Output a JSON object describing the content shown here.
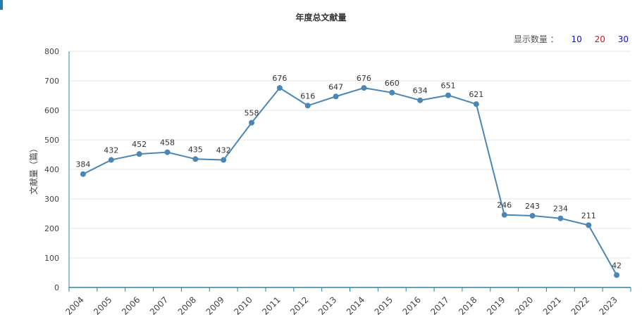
{
  "page": {
    "title": "年度总文献量",
    "display_count_label": "显示数量 ：",
    "display_options": [
      "10",
      "20",
      "30"
    ]
  },
  "colors": {
    "line": "#4a86b6",
    "axis": "#2f82a8",
    "grid": "#e6e6e6",
    "option_blue": "#1010cc",
    "option_red": "#dd1111"
  },
  "chart_data": {
    "type": "line",
    "title": "年度总文献量",
    "xlabel": "",
    "ylabel": "文献量（篇）",
    "ylim": [
      0,
      800
    ],
    "yticks": [
      0,
      100,
      200,
      300,
      400,
      500,
      600,
      700,
      800
    ],
    "grid": true,
    "categories": [
      "2004",
      "2005",
      "2006",
      "2007",
      "2008",
      "2009",
      "2010",
      "2011",
      "2012",
      "2013",
      "2014",
      "2015",
      "2016",
      "2017",
      "2018",
      "2019",
      "2020",
      "2021",
      "2022",
      "2023"
    ],
    "series": [
      {
        "values": [
          384,
          432,
          452,
          458,
          435,
          432,
          558,
          676,
          616,
          647,
          676,
          660,
          634,
          651,
          621,
          246,
          243,
          234,
          211,
          42
        ]
      }
    ]
  }
}
